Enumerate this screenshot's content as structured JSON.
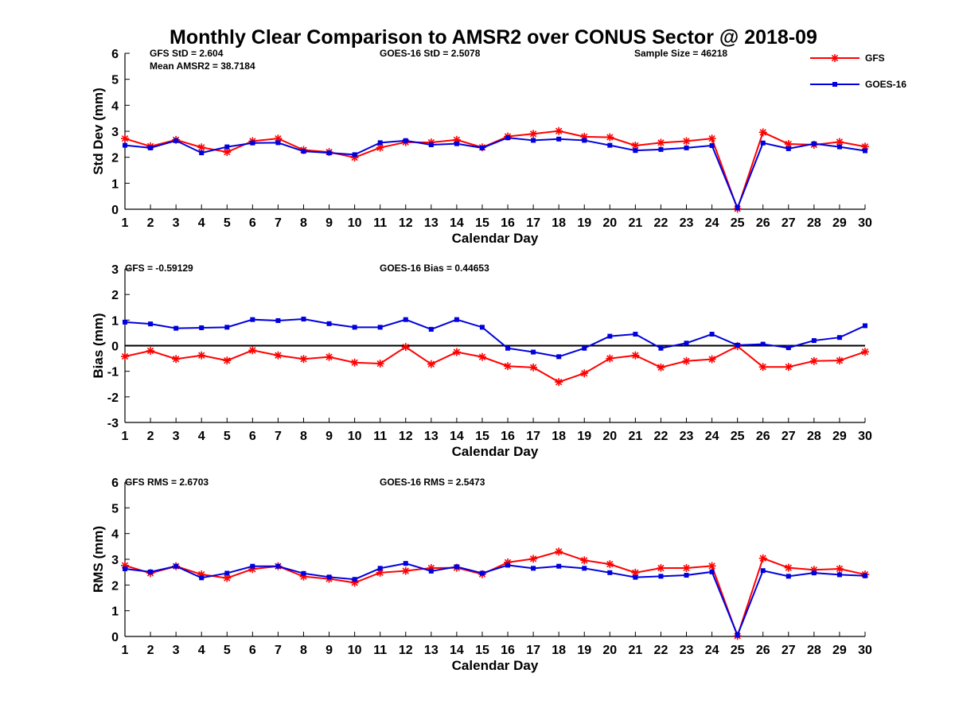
{
  "colors": {
    "gfs": "#ff0000",
    "goes": "#0000dd",
    "axis": "#000000"
  },
  "figure_title": "Monthly Clear Comparison to AMSR2 over CONUS Sector @ 2018-09",
  "legend": {
    "position": "top-right",
    "gfs_label": "GFS",
    "goes_label": "GOES-16",
    "gfs_marker": "asterisk",
    "goes_marker": "square"
  },
  "chart_data": [
    {
      "type": "line",
      "title": "Monthly Clear Comparison to AMSR2 over CONUS Sector @ 2018-09",
      "xlabel": "Calendar Day",
      "ylabel": "Std Dev (mm)",
      "xlim": [
        1,
        30
      ],
      "ylim": [
        0,
        6
      ],
      "yticks": [
        0,
        1,
        2,
        3,
        4,
        5,
        6
      ],
      "grid": false,
      "annotations": [
        "GFS StD = 2.604",
        "Mean AMSR2 = 38.7184",
        "GOES-16 StD = 2.5078",
        "Sample Size = 46218"
      ],
      "x": [
        1,
        2,
        3,
        4,
        5,
        6,
        7,
        8,
        9,
        10,
        11,
        12,
        13,
        14,
        15,
        16,
        17,
        18,
        19,
        20,
        21,
        22,
        23,
        24,
        25,
        26,
        27,
        28,
        29,
        30
      ],
      "series": [
        {
          "name": "GFS",
          "values": [
            2.72,
            2.42,
            2.67,
            2.38,
            2.2,
            2.62,
            2.72,
            2.28,
            2.2,
            1.99,
            2.37,
            2.58,
            2.57,
            2.67,
            2.38,
            2.8,
            2.9,
            3.01,
            2.79,
            2.77,
            2.45,
            2.56,
            2.62,
            2.72,
            0.02,
            2.96,
            2.51,
            2.48,
            2.59,
            2.41
          ]
        },
        {
          "name": "GOES-16",
          "values": [
            2.46,
            2.36,
            2.64,
            2.17,
            2.4,
            2.55,
            2.56,
            2.23,
            2.17,
            2.1,
            2.56,
            2.64,
            2.48,
            2.52,
            2.36,
            2.75,
            2.65,
            2.7,
            2.65,
            2.46,
            2.26,
            2.3,
            2.36,
            2.45,
            0.05,
            2.55,
            2.33,
            2.52,
            2.4,
            2.25
          ]
        }
      ]
    },
    {
      "type": "line",
      "xlabel": "Calendar Day",
      "ylabel": "Bias (mm)",
      "xlim": [
        1,
        30
      ],
      "ylim": [
        -3,
        3
      ],
      "yticks": [
        -3,
        -2,
        -1,
        0,
        1,
        2,
        3
      ],
      "grid": false,
      "reference_line": 0,
      "annotations": [
        "GFS = -0.59129",
        "GOES-16 Bias = 0.44653"
      ],
      "x": [
        1,
        2,
        3,
        4,
        5,
        6,
        7,
        8,
        9,
        10,
        11,
        12,
        13,
        14,
        15,
        16,
        17,
        18,
        19,
        20,
        21,
        22,
        23,
        24,
        25,
        26,
        27,
        28,
        29,
        30
      ],
      "series": [
        {
          "name": "GFS",
          "values": [
            -0.42,
            -0.2,
            -0.52,
            -0.38,
            -0.58,
            -0.18,
            -0.38,
            -0.52,
            -0.44,
            -0.66,
            -0.7,
            -0.05,
            -0.72,
            -0.25,
            -0.44,
            -0.8,
            -0.85,
            -1.42,
            -1.08,
            -0.5,
            -0.38,
            -0.85,
            -0.6,
            -0.53,
            -0.02,
            -0.83,
            -0.83,
            -0.6,
            -0.58,
            -0.24
          ]
        },
        {
          "name": "GOES-16",
          "values": [
            0.92,
            0.85,
            0.68,
            0.7,
            0.72,
            1.02,
            0.98,
            1.04,
            0.86,
            0.72,
            0.72,
            1.02,
            0.64,
            1.02,
            0.72,
            -0.1,
            -0.25,
            -0.43,
            -0.1,
            0.37,
            0.45,
            -0.1,
            0.1,
            0.45,
            0.02,
            0.06,
            -0.08,
            0.2,
            0.32,
            0.78
          ]
        }
      ]
    },
    {
      "type": "line",
      "xlabel": "Calendar Day",
      "ylabel": "RMS (mm)",
      "xlim": [
        1,
        30
      ],
      "ylim": [
        0,
        6
      ],
      "yticks": [
        0,
        1,
        2,
        3,
        4,
        5,
        6
      ],
      "grid": false,
      "annotations": [
        "GFS RMS = 2.6703",
        "GOES-16 RMS = 2.5473"
      ],
      "x": [
        1,
        2,
        3,
        4,
        5,
        6,
        7,
        8,
        9,
        10,
        11,
        12,
        13,
        14,
        15,
        16,
        17,
        18,
        19,
        20,
        21,
        22,
        23,
        24,
        25,
        26,
        27,
        28,
        29,
        30
      ],
      "series": [
        {
          "name": "GFS",
          "values": [
            2.76,
            2.46,
            2.73,
            2.41,
            2.27,
            2.62,
            2.73,
            2.33,
            2.24,
            2.09,
            2.48,
            2.55,
            2.66,
            2.67,
            2.42,
            2.88,
            3.02,
            3.3,
            2.96,
            2.81,
            2.48,
            2.66,
            2.66,
            2.74,
            0.02,
            3.04,
            2.67,
            2.59,
            2.63,
            2.41
          ]
        },
        {
          "name": "GOES-16",
          "values": [
            2.63,
            2.51,
            2.73,
            2.28,
            2.46,
            2.73,
            2.73,
            2.45,
            2.31,
            2.22,
            2.65,
            2.84,
            2.54,
            2.71,
            2.46,
            2.77,
            2.65,
            2.73,
            2.65,
            2.48,
            2.3,
            2.34,
            2.38,
            2.51,
            0.05,
            2.56,
            2.34,
            2.47,
            2.4,
            2.36
          ]
        }
      ]
    }
  ]
}
